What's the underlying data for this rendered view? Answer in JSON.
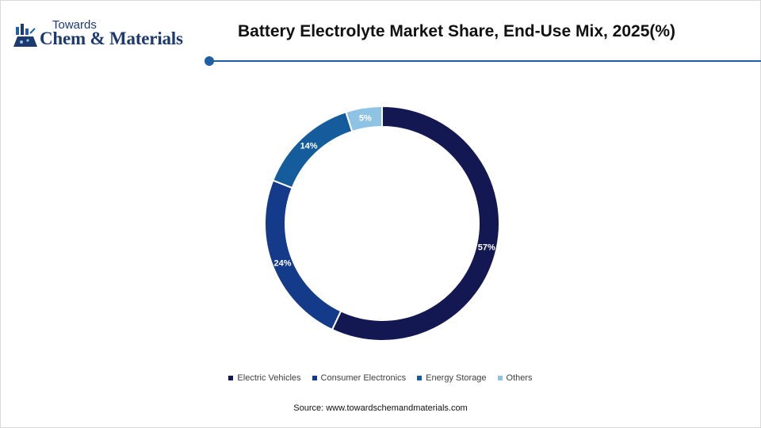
{
  "logo": {
    "line1": "Towards",
    "line2": "Chem & Materials"
  },
  "title": "Battery Electrolyte Market Share, End-Use Mix, 2025(%)",
  "source": "Source:  www.towardschemandmaterials.com",
  "colors": {
    "accent": "#1f5fa6",
    "logo": "#1d3a6e"
  },
  "chart_data": {
    "type": "pie",
    "style": "donut",
    "categories": [
      "Electric Vehicles",
      "Consumer Electronics",
      "Energy Storage",
      "Others"
    ],
    "values": [
      57,
      24,
      14,
      5
    ],
    "labels": [
      "57%",
      "24%",
      "14%",
      "5%"
    ],
    "colors": [
      "#131852",
      "#143a8a",
      "#155c9c",
      "#8fc3e4"
    ],
    "legend_position": "bottom"
  }
}
